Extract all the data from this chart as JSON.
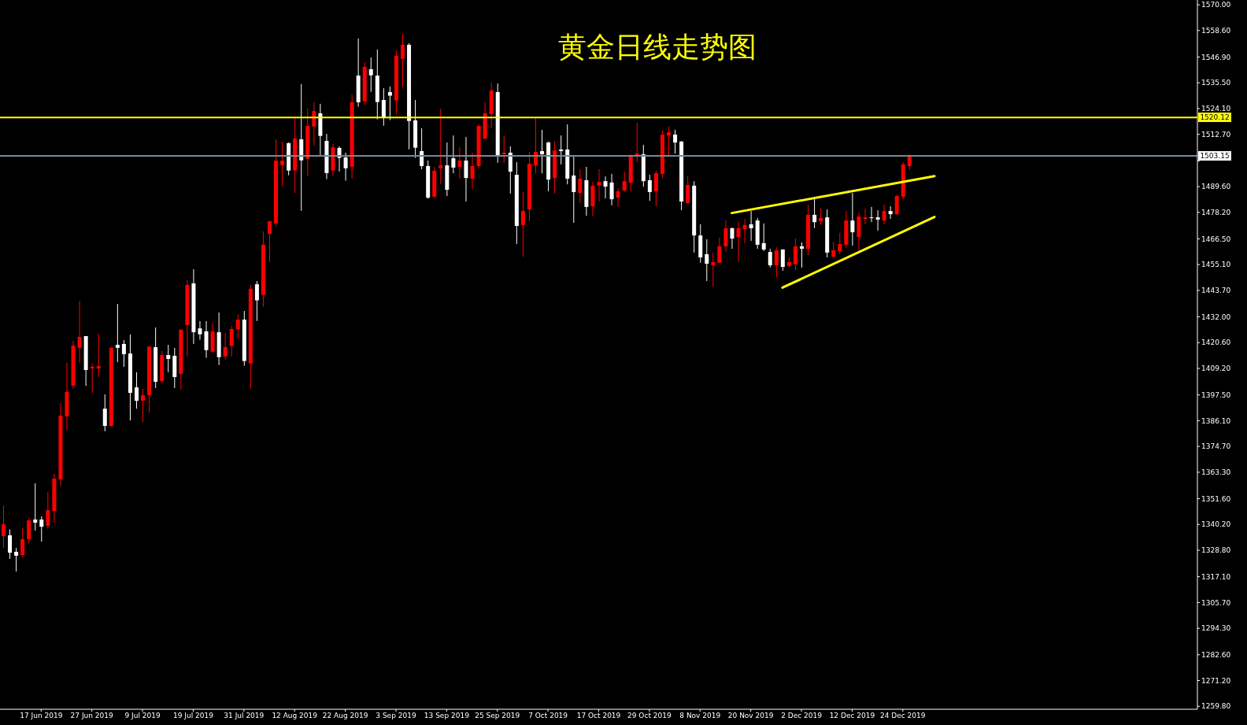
{
  "chart_data": {
    "type": "candlestick",
    "title": "黄金日线走势图",
    "categories": [
      null,
      null,
      null,
      null,
      null,
      null,
      "17 Jun 2019",
      null,
      null,
      null,
      null,
      null,
      null,
      null,
      "27 Jun 2019",
      null,
      null,
      null,
      null,
      null,
      null,
      null,
      "9 Jul 2019",
      null,
      null,
      null,
      null,
      null,
      null,
      null,
      "19 Jul 2019",
      null,
      null,
      null,
      null,
      null,
      null,
      null,
      "31 Jul 2019",
      null,
      null,
      null,
      null,
      null,
      null,
      null,
      "12 Aug 2019",
      null,
      null,
      null,
      null,
      null,
      null,
      null,
      "22 Aug 2019",
      null,
      null,
      null,
      null,
      null,
      null,
      null,
      "3 Sep 2019",
      null,
      null,
      null,
      null,
      null,
      null,
      null,
      "13 Sep 2019",
      null,
      null,
      null,
      null,
      null,
      null,
      null,
      "25 Sep 2019",
      null,
      null,
      null,
      null,
      null,
      null,
      null,
      "7 Oct 2019",
      null,
      null,
      null,
      null,
      null,
      null,
      null,
      "17 Oct 2019",
      null,
      null,
      null,
      null,
      null,
      null,
      null,
      "29 Oct 2019",
      null,
      null,
      null,
      null,
      null,
      null,
      null,
      "8 Nov 2019",
      null,
      null,
      null,
      null,
      null,
      null,
      null,
      "20 Nov 2019",
      null,
      null,
      null,
      null,
      null,
      null,
      null,
      "2 Dec 2019",
      null,
      null,
      null,
      null,
      null,
      null,
      null,
      "12 Dec 2019",
      null,
      null,
      null,
      null,
      null,
      null,
      null,
      "24 Dec 2019",
      null,
      null,
      null,
      null,
      null,
      null,
      null,
      null,
      null,
      null,
      null,
      null,
      null,
      null,
      null,
      null,
      null,
      null,
      null,
      null,
      null,
      null,
      null,
      null,
      null,
      null,
      null,
      null,
      null,
      null,
      null,
      null,
      null,
      null,
      null,
      null,
      null,
      null,
      null,
      null,
      null,
      null,
      null,
      null,
      null,
      null
    ],
    "ohlc": [
      [
        1335.1,
        1348.4,
        1329.9,
        1340.3
      ],
      [
        1335.4,
        1338.0,
        1325.0,
        1327.7
      ],
      [
        1328.1,
        1329.8,
        1319.4,
        1326.4
      ],
      [
        1326.7,
        1338.5,
        1325.8,
        1333.7
      ],
      [
        1333.7,
        1343.2,
        1331.9,
        1342.0
      ],
      [
        1342.4,
        1358.4,
        1337.5,
        1341.0
      ],
      [
        1342.4,
        1343.8,
        1332.6,
        1339.2
      ],
      [
        1339.6,
        1354.5,
        1338.3,
        1346.5
      ],
      [
        1346.2,
        1362.6,
        1341.0,
        1360.5
      ],
      [
        1360.1,
        1393.9,
        1357.3,
        1388.3
      ],
      [
        1388.0,
        1411.6,
        1382.0,
        1398.8
      ],
      [
        1401.5,
        1421.4,
        1400.1,
        1419.3
      ],
      [
        1418.3,
        1439.1,
        1411.6,
        1423.1
      ],
      [
        1423.5,
        1423.5,
        1401.5,
        1408.5
      ],
      [
        1409.2,
        1411.3,
        1398.4,
        1409.9
      ],
      [
        1409.2,
        1424.5,
        1405.4,
        1410.2
      ],
      [
        1391.4,
        1397.7,
        1381.4,
        1383.8
      ],
      [
        1383.8,
        1418.6,
        1383.4,
        1418.3
      ],
      [
        1419.6,
        1437.7,
        1412.0,
        1418.3
      ],
      [
        1420.0,
        1421.7,
        1409.9,
        1415.5
      ],
      [
        1415.8,
        1424.2,
        1386.2,
        1398.4
      ],
      [
        1400.8,
        1407.5,
        1391.4,
        1394.9
      ],
      [
        1394.9,
        1400.1,
        1385.5,
        1397.4
      ],
      [
        1397.4,
        1418.9,
        1389.7,
        1418.9
      ],
      [
        1418.6,
        1427.3,
        1400.5,
        1403.3
      ],
      [
        1403.6,
        1416.9,
        1402.9,
        1415.1
      ],
      [
        1415.1,
        1419.6,
        1407.5,
        1413.4
      ],
      [
        1414.8,
        1418.3,
        1400.5,
        1405.4
      ],
      [
        1406.8,
        1426.6,
        1399.8,
        1426.3
      ],
      [
        1428.4,
        1448.2,
        1414.5,
        1446.1
      ],
      [
        1446.8,
        1453.1,
        1420.0,
        1425.2
      ],
      [
        1426.9,
        1430.1,
        1421.9,
        1424.3
      ],
      [
        1425.6,
        1430.1,
        1413.9,
        1417.3
      ],
      [
        1416.6,
        1429.4,
        1415.9,
        1425.6
      ],
      [
        1425.2,
        1433.9,
        1410.7,
        1414.2
      ],
      [
        1414.5,
        1424.9,
        1413.1,
        1418.6
      ],
      [
        1419.1,
        1428.0,
        1414.5,
        1426.6
      ],
      [
        1426.4,
        1433.2,
        1422.2,
        1430.8
      ],
      [
        1430.8,
        1434.6,
        1410.4,
        1412.5
      ],
      [
        1411.4,
        1446.1,
        1400.3,
        1444.4
      ],
      [
        1446.4,
        1447.8,
        1430.2,
        1439.3
      ],
      [
        1441.7,
        1469.8,
        1436.5,
        1463.9
      ],
      [
        1468.7,
        1474.3,
        1456.3,
        1474.3
      ],
      [
        1473.3,
        1510.5,
        1472.0,
        1501.1
      ],
      [
        1499.1,
        1509.5,
        1489.7,
        1501.1
      ],
      [
        1508.8,
        1509.1,
        1494.6,
        1496.7
      ],
      [
        1496.7,
        1519.9,
        1486.8,
        1510.8
      ],
      [
        1510.5,
        1534.9,
        1478.9,
        1501.2
      ],
      [
        1501.9,
        1524.1,
        1494.3,
        1516.4
      ],
      [
        1516.2,
        1526.9,
        1507.5,
        1523.0
      ],
      [
        1522.0,
        1526.2,
        1503.3,
        1512.0
      ],
      [
        1509.8,
        1512.9,
        1492.9,
        1495.6
      ],
      [
        1496.7,
        1508.4,
        1494.3,
        1507.0
      ],
      [
        1506.7,
        1507.4,
        1496.3,
        1502.3
      ],
      [
        1502.5,
        1504.6,
        1492.2,
        1497.7
      ],
      [
        1498.4,
        1530.3,
        1493.2,
        1526.9
      ],
      [
        1538.7,
        1555.1,
        1524.9,
        1526.9
      ],
      [
        1527.3,
        1544.6,
        1525.6,
        1542.5
      ],
      [
        1541.5,
        1546.7,
        1531.5,
        1538.8
      ],
      [
        1538.7,
        1550.2,
        1519.3,
        1527.0
      ],
      [
        1527.9,
        1533.1,
        1516.5,
        1519.9
      ],
      [
        1531.4,
        1533.8,
        1519.0,
        1529.8
      ],
      [
        1527.7,
        1549.8,
        1521.4,
        1547.4
      ],
      [
        1546.1,
        1557.1,
        1533.6,
        1552.3
      ],
      [
        1552.3,
        1553.0,
        1506.1,
        1518.6
      ],
      [
        1518.9,
        1527.9,
        1502.3,
        1506.8
      ],
      [
        1505.3,
        1515.4,
        1497.3,
        1498.7
      ],
      [
        1498.7,
        1501.1,
        1484.2,
        1484.7
      ],
      [
        1485.1,
        1498.3,
        1484.7,
        1496.6
      ],
      [
        1497.7,
        1524.1,
        1490.8,
        1499.0
      ],
      [
        1499.0,
        1509.1,
        1485.4,
        1488.2
      ],
      [
        1502.1,
        1512.2,
        1495.5,
        1498.0
      ],
      [
        1498.3,
        1507.0,
        1493.1,
        1501.1
      ],
      [
        1501.1,
        1511.5,
        1483.0,
        1493.4
      ],
      [
        1493.1,
        1504.6,
        1488.6,
        1498.7
      ],
      [
        1498.7,
        1517.1,
        1497.6,
        1516.4
      ],
      [
        1510.8,
        1526.9,
        1510.5,
        1522.0
      ],
      [
        1521.6,
        1535.6,
        1515.4,
        1532.1
      ],
      [
        1531.4,
        1535.2,
        1500.1,
        1503.2
      ],
      [
        1503.9,
        1512.2,
        1500.1,
        1504.6
      ],
      [
        1504.6,
        1507.4,
        1486.5,
        1496.2
      ],
      [
        1494.8,
        1500.4,
        1464.2,
        1472.2
      ],
      [
        1472.6,
        1487.2,
        1458.6,
        1478.8
      ],
      [
        1479.5,
        1504.9,
        1474.3,
        1499.7
      ],
      [
        1499.0,
        1519.9,
        1495.5,
        1504.9
      ],
      [
        1505.3,
        1514.7,
        1495.5,
        1503.9
      ],
      [
        1509.1,
        1509.5,
        1487.5,
        1492.7
      ],
      [
        1493.4,
        1509.8,
        1486.5,
        1505.6
      ],
      [
        1506.0,
        1512.2,
        1499.4,
        1505.3
      ],
      [
        1506.0,
        1517.1,
        1490.6,
        1493.1
      ],
      [
        1494.5,
        1503.2,
        1473.6,
        1487.2
      ],
      [
        1486.8,
        1497.3,
        1482.3,
        1493.1
      ],
      [
        1492.4,
        1498.3,
        1476.7,
        1480.6
      ],
      [
        1480.9,
        1491.7,
        1476.7,
        1490.0
      ],
      [
        1490.0,
        1497.3,
        1483.0,
        1491.7
      ],
      [
        1492.0,
        1494.1,
        1484.4,
        1489.6
      ],
      [
        1491.4,
        1495.2,
        1481.3,
        1484.0
      ],
      [
        1484.7,
        1488.9,
        1480.6,
        1487.5
      ],
      [
        1487.9,
        1496.2,
        1487.2,
        1492.0
      ],
      [
        1491.4,
        1503.9,
        1487.5,
        1503.5
      ],
      [
        1503.2,
        1517.8,
        1500.4,
        1504.2
      ],
      [
        1503.9,
        1508.1,
        1489.6,
        1492.0
      ],
      [
        1492.4,
        1494.8,
        1483.3,
        1487.2
      ],
      [
        1487.5,
        1496.6,
        1480.9,
        1495.5
      ],
      [
        1495.2,
        1514.3,
        1493.4,
        1512.6
      ],
      [
        1512.2,
        1516.1,
        1502.8,
        1513.6
      ],
      [
        1512.6,
        1514.7,
        1504.2,
        1509.1
      ],
      [
        1509.5,
        1509.8,
        1479.2,
        1483.0
      ],
      [
        1482.3,
        1494.1,
        1482.0,
        1490.3
      ],
      [
        1490.0,
        1492.0,
        1460.4,
        1468.0
      ],
      [
        1468.0,
        1472.9,
        1455.9,
        1458.3
      ],
      [
        1459.7,
        1466.3,
        1447.8,
        1455.5
      ],
      [
        1454.8,
        1460.4,
        1445.4,
        1456.2
      ],
      [
        1455.9,
        1467.0,
        1455.9,
        1463.2
      ],
      [
        1463.2,
        1474.6,
        1460.7,
        1471.2
      ],
      [
        1471.2,
        1471.5,
        1462.1,
        1466.6
      ],
      [
        1467.3,
        1473.9,
        1456.2,
        1471.2
      ],
      [
        1470.8,
        1475.3,
        1464.6,
        1472.6
      ],
      [
        1472.9,
        1478.8,
        1465.6,
        1471.2
      ],
      [
        1474.6,
        1475.7,
        1462.1,
        1463.9
      ],
      [
        1464.6,
        1473.3,
        1461.1,
        1461.8
      ],
      [
        1460.7,
        1462.1,
        1453.8,
        1454.8
      ],
      [
        1454.8,
        1462.8,
        1449.6,
        1461.4
      ],
      [
        1461.8,
        1461.8,
        1452.4,
        1454.1
      ],
      [
        1454.5,
        1458.3,
        1453.8,
        1456.2
      ],
      [
        1455.2,
        1466.6,
        1452.7,
        1463.2
      ],
      [
        1463.2,
        1464.9,
        1453.8,
        1462.1
      ],
      [
        1462.1,
        1481.6,
        1459.3,
        1477.1
      ],
      [
        1477.1,
        1484.0,
        1471.2,
        1473.9
      ],
      [
        1474.3,
        1480.2,
        1472.6,
        1475.7
      ],
      [
        1476.0,
        1479.5,
        1458.3,
        1460.4
      ],
      [
        1458.6,
        1465.2,
        1458.3,
        1461.4
      ],
      [
        1461.1,
        1469.1,
        1459.7,
        1464.2
      ],
      [
        1463.9,
        1478.8,
        1462.5,
        1474.6
      ],
      [
        1474.6,
        1486.8,
        1463.5,
        1469.4
      ],
      [
        1467.3,
        1478.1,
        1461.4,
        1476.4
      ],
      [
        1475.3,
        1479.9,
        1472.9,
        1476.0
      ],
      [
        1476.0,
        1480.6,
        1473.9,
        1475.7
      ],
      [
        1476.0,
        1479.2,
        1470.1,
        1475.0
      ],
      [
        1474.6,
        1481.6,
        1472.9,
        1478.8
      ],
      [
        1478.8,
        1480.9,
        1475.3,
        1477.4
      ],
      [
        1477.4,
        1486.1,
        1477.1,
        1485.4
      ],
      [
        1485.1,
        1500.4,
        1484.1,
        1499.4
      ],
      [
        1498.7,
        1503.9,
        1496.9,
        1503.15
      ],
      null,
      null,
      null,
      null,
      null,
      null,
      null,
      null,
      null,
      null,
      null,
      null,
      null,
      null,
      null,
      null,
      null,
      null,
      null,
      null,
      null,
      null,
      null,
      null,
      null,
      null,
      null,
      null,
      null,
      null,
      null,
      null,
      null,
      null,
      null,
      null,
      null,
      null,
      null,
      null,
      null,
      null,
      null,
      null,
      null
    ],
    "colors": [
      "#ff0000",
      "#ffffff",
      "#ffffff",
      "#ff0000",
      "#ff0000",
      "#ffffff",
      "#ffffff",
      "#ff0000",
      "#ff0000",
      "#ff0000",
      "#ff0000",
      "#ff0000",
      "#ff0000",
      "#ffffff",
      "#ff0000",
      "#ff0000",
      "#ffffff",
      "#ff0000",
      "#ffffff",
      "#ffffff",
      "#ffffff",
      "#ffffff",
      "#ff0000",
      "#ff0000",
      "#ffffff",
      "#ff0000",
      "#ffffff",
      "#ffffff",
      "#ff0000",
      "#ff0000",
      "#ffffff",
      "#ffffff",
      "#ffffff",
      "#ff0000",
      "#ffffff",
      "#ff0000",
      "#ff0000",
      "#ff0000",
      "#ffffff",
      "#ff0000",
      "#ffffff",
      "#ff0000",
      "#ff0000",
      "#ff0000",
      "#ff0000",
      "#ffffff",
      "#ff0000",
      "#ffffff",
      "#ff0000",
      "#ff0000",
      "#ffffff",
      "#ffffff",
      "#ff0000",
      "#ffffff",
      "#ffffff",
      "#ff0000",
      "#ffffff",
      "#ff0000",
      "#ffffff",
      "#ffffff",
      "#ffffff",
      "#ffffff",
      "#ff0000",
      "#ff0000",
      "#ffffff",
      "#ffffff",
      "#ffffff",
      "#ffffff",
      "#ff0000",
      "#ff0000",
      "#ffffff",
      "#ffffff",
      "#ff0000",
      "#ffffff",
      "#ff0000",
      "#ff0000",
      "#ff0000",
      "#ff0000",
      "#ffffff",
      "#ff0000",
      "#ffffff",
      "#ffffff",
      "#ff0000",
      "#ff0000",
      "#ff0000",
      "#ffffff",
      "#ffffff",
      "#ff0000",
      "#ffffff",
      "#ffffff",
      "#ffffff",
      "#ff0000",
      "#ffffff",
      "#ff0000",
      "#ff0000",
      "#ffffff",
      "#ffffff",
      "#ff0000",
      "#ff0000",
      "#ff0000",
      "#ff0000",
      "#ffffff",
      "#ffffff",
      "#ff0000",
      "#ff0000",
      "#ff0000",
      "#ffffff",
      "#ffffff",
      "#ff0000",
      "#ffffff",
      "#ffffff",
      "#ffffff",
      "#ff0000",
      "#ff0000",
      "#ff0000",
      "#ffffff",
      "#ff0000",
      "#ff0000",
      "#ffffff",
      "#ffffff",
      "#ffffff",
      "#ffffff",
      "#ff0000",
      "#ffffff",
      "#ff0000",
      "#ff0000",
      "#ffffff",
      "#ff0000",
      "#ffffff",
      "#ff0000",
      "#ffffff",
      "#ff0000",
      "#ff0000",
      "#ff0000",
      "#ffffff",
      "#ff0000",
      "#ff0000",
      "#ffffff",
      "#ffffff",
      "#ff0000",
      "#ffffff",
      "#ff0000",
      "#ff0000",
      "#ff0000",
      null,
      null,
      null,
      null,
      null,
      null,
      null,
      null,
      null,
      null,
      null,
      null,
      null,
      null,
      null,
      null,
      null,
      null,
      null,
      null,
      null,
      null,
      null,
      null,
      null,
      null,
      null,
      null,
      null,
      null,
      null,
      null,
      null,
      null,
      null,
      null,
      null,
      null,
      null,
      null,
      null,
      null,
      null,
      null,
      null
    ],
    "series": [
      {
        "type": "line",
        "color": "#ffff00",
        "values": [
          null,
          null,
          null,
          null,
          null,
          null,
          null,
          null,
          null,
          null,
          null,
          null,
          null,
          null,
          null,
          null,
          null,
          null,
          null,
          null,
          null,
          null,
          null,
          null,
          null,
          null,
          null,
          null,
          null,
          null,
          null,
          null,
          null,
          null,
          null,
          null,
          null,
          null,
          null,
          null,
          null,
          null,
          null,
          null,
          null,
          null,
          null,
          null,
          null,
          null,
          null,
          null,
          null,
          null,
          null,
          null,
          null,
          null,
          null,
          null,
          null,
          null,
          null,
          null,
          null,
          null,
          null,
          null,
          null,
          null,
          null,
          null,
          null,
          null,
          null,
          null,
          null,
          null,
          null,
          null,
          null,
          null,
          null,
          null,
          null,
          null,
          null,
          null,
          null,
          null,
          null,
          null,
          null,
          null,
          null,
          null,
          null,
          null,
          null,
          null,
          null,
          null,
          null,
          null,
          null,
          null,
          null,
          null,
          null,
          null,
          null,
          null,
          null,
          null,
          null,
          1477.9,
          null,
          null,
          null,
          null,
          null,
          null,
          null,
          null,
          null,
          null,
          null,
          null,
          null,
          null,
          null,
          null,
          null,
          null,
          null,
          null,
          null,
          null,
          null,
          null,
          null,
          null,
          null,
          null,
          null,
          null,
          null,
          1494.2,
          null,
          null,
          null,
          null,
          null,
          null,
          null,
          null,
          null,
          null,
          null,
          null,
          null,
          null,
          null,
          null,
          null,
          null,
          null,
          null,
          null,
          null,
          null,
          null,
          null,
          null,
          null,
          null,
          null,
          null,
          null,
          null,
          null,
          null,
          null,
          null,
          null,
          null,
          null,
          null,
          null
        ]
      },
      {
        "type": "line",
        "color": "#ffff00",
        "values": [
          null,
          null,
          null,
          null,
          null,
          null,
          null,
          null,
          null,
          null,
          null,
          null,
          null,
          null,
          null,
          null,
          null,
          null,
          null,
          null,
          null,
          null,
          null,
          null,
          null,
          null,
          null,
          null,
          null,
          null,
          null,
          null,
          null,
          null,
          null,
          null,
          null,
          null,
          null,
          null,
          null,
          null,
          null,
          null,
          null,
          null,
          null,
          null,
          null,
          null,
          null,
          null,
          null,
          null,
          null,
          null,
          null,
          null,
          null,
          null,
          null,
          null,
          null,
          null,
          null,
          null,
          null,
          null,
          null,
          null,
          null,
          null,
          null,
          null,
          null,
          null,
          null,
          null,
          null,
          null,
          null,
          null,
          null,
          null,
          null,
          null,
          null,
          null,
          null,
          null,
          null,
          null,
          null,
          null,
          null,
          null,
          null,
          null,
          null,
          null,
          null,
          null,
          null,
          null,
          null,
          null,
          null,
          null,
          null,
          null,
          null,
          null,
          null,
          null,
          null,
          null,
          null,
          null,
          null,
          null,
          null,
          null,
          null,
          1444.9,
          null,
          null,
          null,
          null,
          null,
          null,
          null,
          null,
          null,
          null,
          null,
          null,
          null,
          null,
          null,
          null,
          null,
          null,
          null,
          null,
          null,
          null,
          null,
          1476.2,
          null,
          null,
          null,
          null,
          null,
          null,
          null,
          null,
          null,
          null,
          null,
          null,
          null,
          null,
          null,
          null,
          null,
          null,
          null,
          null,
          null,
          null,
          null,
          null,
          null,
          null,
          null,
          null,
          null,
          null,
          null,
          null,
          null,
          null,
          null,
          null,
          null,
          null,
          null,
          null,
          null
        ]
      }
    ],
    "ylim": [
      1258.5,
      1572.1
    ],
    "yticks": [
      {
        "value": 1570,
        "label": "1570.00"
      },
      {
        "value": 1558.6,
        "label": "1558.60"
      },
      {
        "value": 1546.9,
        "label": "1546.90"
      },
      {
        "value": 1535.5,
        "label": "1535.50"
      },
      {
        "value": 1524.1,
        "label": "1524.10"
      },
      {
        "value": 1512.7,
        "label": "1512.70"
      },
      {
        "value": 1501,
        "label": null
      },
      {
        "value": 1489.6,
        "label": "1489.60"
      },
      {
        "value": 1478.2,
        "label": "1478.20"
      },
      {
        "value": 1466.5,
        "label": "1466.50"
      },
      {
        "value": 1455.1,
        "label": "1455.10"
      },
      {
        "value": 1443.7,
        "label": "1443.70"
      },
      {
        "value": 1432,
        "label": "1432.00"
      },
      {
        "value": 1420.6,
        "label": "1420.60"
      },
      {
        "value": 1409.2,
        "label": "1409.20"
      },
      {
        "value": 1397.5,
        "label": "1397.50"
      },
      {
        "value": 1386.1,
        "label": "1386.10"
      },
      {
        "value": 1374.7,
        "label": "1374.70"
      },
      {
        "value": 1363.3,
        "label": "1363.30"
      },
      {
        "value": 1351.6,
        "label": "1351.60"
      },
      {
        "value": 1340.2,
        "label": "1340.20"
      },
      {
        "value": 1328.8,
        "label": "1328.80"
      },
      {
        "value": 1317.1,
        "label": "1317.10"
      },
      {
        "value": 1305.7,
        "label": "1305.70"
      },
      {
        "value": 1294.3,
        "label": "1294.30"
      },
      {
        "value": 1282.6,
        "label": "1282.60"
      },
      {
        "value": 1271.2,
        "label": "1271.20"
      },
      {
        "value": 1259.8,
        "label": "1259.80"
      }
    ],
    "ref_lines": [
      {
        "axis": "y",
        "value": 1520.12,
        "label": "1520.12",
        "color": "#ffff00"
      },
      {
        "axis": "y",
        "value": 1503.15,
        "label": "1503.15",
        "color": "#778899"
      }
    ]
  }
}
